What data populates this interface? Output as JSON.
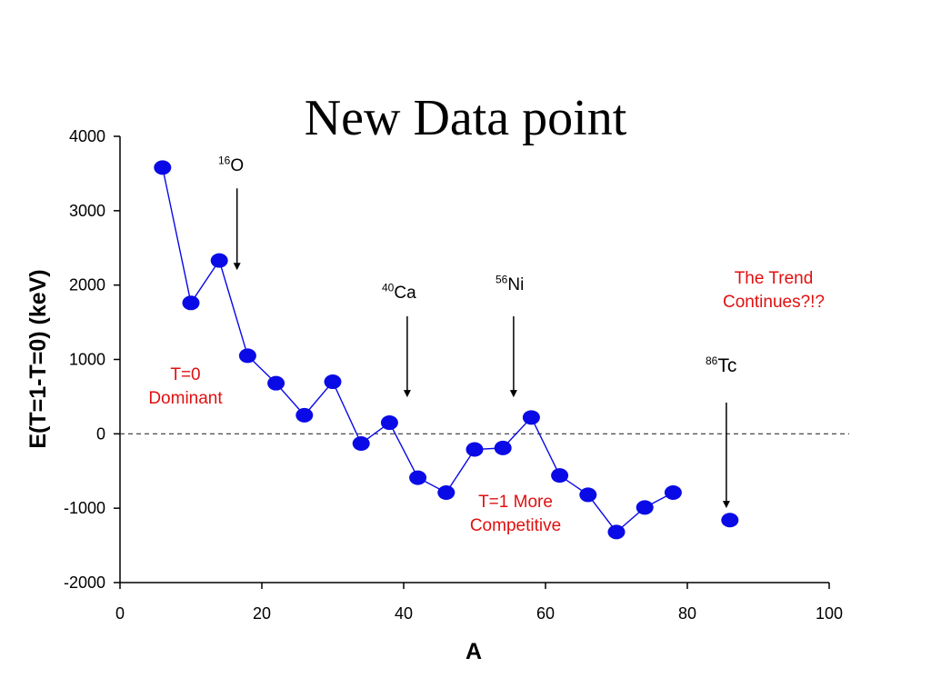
{
  "title": "New Data point",
  "colors": {
    "series": "#0a0ae6",
    "line": "#0a0ae6",
    "annotation_red": "#e01010",
    "axis": "#000000"
  },
  "annotations": {
    "o16": {
      "sup": "16",
      "text": "O"
    },
    "ca40": {
      "sup": "40",
      "text": "Ca"
    },
    "ni56": {
      "sup": "56",
      "text": "Ni"
    },
    "tc86": {
      "sup": "86",
      "text": "Tc"
    },
    "t0_line1": "T=0",
    "t0_line2": "Dominant",
    "t1_line1": "T=1 More",
    "t1_line2": "Competitive",
    "trend_line1": "The Trend",
    "trend_line2": "Continues?!?"
  },
  "chart_data": {
    "type": "scatter",
    "title": "New Data point",
    "xlabel": "A",
    "ylabel": "E(T=1-T=0) (keV)",
    "xlim": [
      0,
      100
    ],
    "ylim": [
      -2000,
      4000
    ],
    "xticks": [
      0,
      20,
      40,
      60,
      80,
      100
    ],
    "yticks": [
      -2000,
      -1000,
      0,
      1000,
      2000,
      3000,
      4000
    ],
    "reference_line": {
      "y": 0,
      "style": "dashed"
    },
    "series": [
      {
        "style": "line+markers",
        "x": [
          6,
          10,
          14,
          18,
          22,
          26,
          30,
          34,
          38,
          42,
          46,
          50,
          54,
          58,
          62,
          66,
          70,
          74,
          78
        ],
        "y": [
          3580,
          1760,
          2330,
          1050,
          680,
          250,
          700,
          -130,
          150,
          -590,
          -790,
          -210,
          -190,
          220,
          -560,
          -820,
          -1320,
          -990,
          -790
        ]
      },
      {
        "style": "markers",
        "x": [
          86
        ],
        "y": [
          -1160
        ]
      }
    ],
    "arrows": [
      {
        "label": "16O",
        "x": 16.5,
        "y_from": 3300,
        "y_to": 2250
      },
      {
        "label": "40Ca",
        "x": 40.5,
        "y_from": 1580,
        "y_to": 540
      },
      {
        "label": "56Ni",
        "x": 55.5,
        "y_from": 1580,
        "y_to": 540
      },
      {
        "label": "86Tc",
        "x": 85.5,
        "y_from": 420,
        "y_to": -950
      }
    ]
  }
}
